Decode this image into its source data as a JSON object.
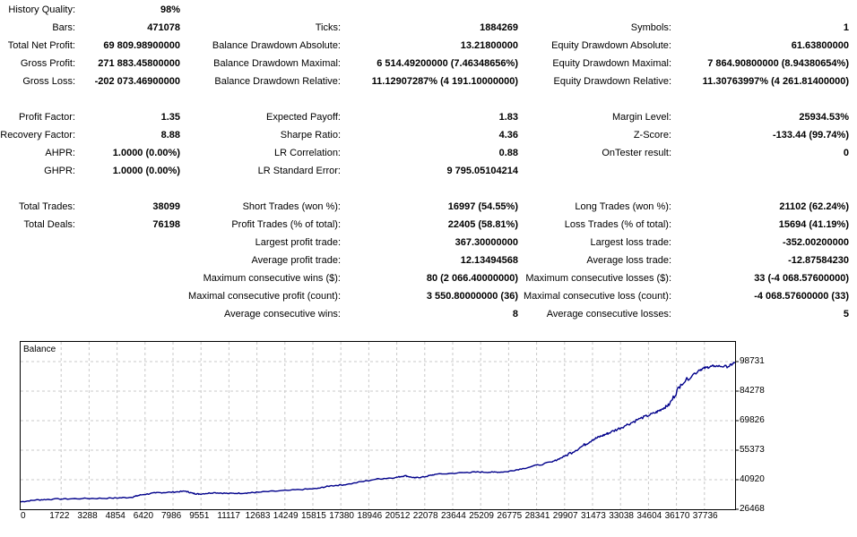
{
  "stats": [
    {
      "row": 0,
      "cells": [
        {
          "col": 1,
          "label": "History Quality:",
          "value": "98%"
        }
      ]
    },
    {
      "row": 1,
      "cells": [
        {
          "col": 1,
          "label": "Bars:",
          "value": "471078"
        },
        {
          "col": 2,
          "label": "Ticks:",
          "value": "1884269"
        },
        {
          "col": 3,
          "label": "Symbols:",
          "value": "1"
        }
      ]
    },
    {
      "row": 2,
      "cells": [
        {
          "col": 1,
          "label": "Total Net Profit:",
          "value": "69 809.98900000"
        },
        {
          "col": 2,
          "label": "Balance Drawdown Absolute:",
          "value": "13.21800000"
        },
        {
          "col": 3,
          "label": "Equity Drawdown Absolute:",
          "value": "61.63800000"
        }
      ]
    },
    {
      "row": 3,
      "cells": [
        {
          "col": 1,
          "label": "Gross Profit:",
          "value": "271 883.45800000"
        },
        {
          "col": 2,
          "label": "Balance Drawdown Maximal:",
          "value": "6 514.49200000 (7.46348656%)"
        },
        {
          "col": 3,
          "label": "Equity Drawdown Maximal:",
          "value": "7 864.90800000 (8.94380654%)"
        }
      ]
    },
    {
      "row": 4,
      "cells": [
        {
          "col": 1,
          "label": "Gross Loss:",
          "value": "-202 073.46900000"
        },
        {
          "col": 2,
          "label": "Balance Drawdown Relative:",
          "value": "11.12907287% (4 191.10000000)"
        },
        {
          "col": 3,
          "label": "Equity Drawdown Relative:",
          "value": "11.30763997% (4 261.81400000)"
        }
      ]
    },
    {
      "row": 6,
      "cells": [
        {
          "col": 1,
          "label": "Profit Factor:",
          "value": "1.35"
        },
        {
          "col": 2,
          "label": "Expected Payoff:",
          "value": "1.83"
        },
        {
          "col": 3,
          "label": "Margin Level:",
          "value": "25934.53%"
        }
      ]
    },
    {
      "row": 7,
      "cells": [
        {
          "col": 1,
          "label": "Recovery Factor:",
          "value": "8.88"
        },
        {
          "col": 2,
          "label": "Sharpe Ratio:",
          "value": "4.36"
        },
        {
          "col": 3,
          "label": "Z-Score:",
          "value": "-133.44 (99.74%)"
        }
      ]
    },
    {
      "row": 8,
      "cells": [
        {
          "col": 1,
          "label": "AHPR:",
          "value": "1.0000 (0.00%)"
        },
        {
          "col": 2,
          "label": "LR Correlation:",
          "value": "0.88"
        },
        {
          "col": 3,
          "label": "OnTester result:",
          "value": "0"
        }
      ]
    },
    {
      "row": 9,
      "cells": [
        {
          "col": 1,
          "label": "GHPR:",
          "value": "1.0000 (0.00%)"
        },
        {
          "col": 2,
          "label": "LR Standard Error:",
          "value": "9 795.05104214"
        }
      ]
    },
    {
      "row": 11,
      "cells": [
        {
          "col": 1,
          "label": "Total Trades:",
          "value": "38099"
        },
        {
          "col": 2,
          "label": "Short Trades (won %):",
          "value": "16997 (54.55%)"
        },
        {
          "col": 3,
          "label": "Long Trades (won %):",
          "value": "21102 (62.24%)"
        }
      ]
    },
    {
      "row": 12,
      "cells": [
        {
          "col": 1,
          "label": "Total Deals:",
          "value": "76198"
        },
        {
          "col": 2,
          "label": "Profit Trades (% of total):",
          "value": "22405 (58.81%)"
        },
        {
          "col": 3,
          "label": "Loss Trades (% of total):",
          "value": "15694 (41.19%)"
        }
      ]
    },
    {
      "row": 13,
      "cells": [
        {
          "col": 2,
          "label": "Largest profit trade:",
          "value": "367.30000000"
        },
        {
          "col": 3,
          "label": "Largest loss trade:",
          "value": "-352.00200000"
        }
      ]
    },
    {
      "row": 14,
      "cells": [
        {
          "col": 2,
          "label": "Average profit trade:",
          "value": "12.13494568"
        },
        {
          "col": 3,
          "label": "Average loss trade:",
          "value": "-12.87584230"
        }
      ]
    },
    {
      "row": 15,
      "cells": [
        {
          "col": 2,
          "label": "Maximum consecutive wins ($):",
          "value": "80 (2 066.40000000)"
        },
        {
          "col": 3,
          "label": "Maximum consecutive losses ($):",
          "value": "33 (-4 068.57600000)"
        }
      ]
    },
    {
      "row": 16,
      "cells": [
        {
          "col": 2,
          "label": "Maximal consecutive profit (count):",
          "value": "3 550.80000000 (36)"
        },
        {
          "col": 3,
          "label": "Maximal consecutive loss (count):",
          "value": "-4 068.57600000 (33)"
        }
      ]
    },
    {
      "row": 17,
      "cells": [
        {
          "col": 2,
          "label": "Average consecutive wins:",
          "value": "8"
        },
        {
          "col": 3,
          "label": "Average consecutive losses:",
          "value": "5"
        }
      ]
    }
  ],
  "chart_data": {
    "type": "line",
    "title": "Balance",
    "line_color": "#00008b",
    "grid": true,
    "ylim": [
      26468,
      98731
    ],
    "y_ticks": [
      "98731",
      "84278",
      "69826",
      "55373",
      "40920",
      "26468"
    ],
    "x_ticks": [
      "0",
      "1722",
      "3288",
      "4854",
      "6420",
      "7986",
      "9551",
      "11117",
      "12683",
      "14249",
      "15815",
      "17380",
      "18946",
      "20512",
      "22078",
      "23644",
      "25209",
      "26775",
      "28341",
      "29907",
      "31473",
      "33038",
      "34604",
      "36170",
      "37736"
    ],
    "xlim": [
      0,
      38099
    ],
    "series": [
      {
        "points": [
          [
            0,
            30100
          ],
          [
            800,
            31000
          ],
          [
            1722,
            31400
          ],
          [
            3288,
            31700
          ],
          [
            4854,
            31900
          ],
          [
            5900,
            32300
          ],
          [
            6420,
            33500
          ],
          [
            7200,
            34500
          ],
          [
            7986,
            34800
          ],
          [
            8800,
            35300
          ],
          [
            9200,
            34200
          ],
          [
            9551,
            33900
          ],
          [
            10300,
            34600
          ],
          [
            11117,
            34200
          ],
          [
            12000,
            34400
          ],
          [
            12683,
            34800
          ],
          [
            14249,
            35700
          ],
          [
            15815,
            36600
          ],
          [
            16500,
            37900
          ],
          [
            17380,
            38600
          ],
          [
            18946,
            41200
          ],
          [
            20000,
            42000
          ],
          [
            20512,
            42900
          ],
          [
            21000,
            41800
          ],
          [
            21500,
            42300
          ],
          [
            22078,
            43500
          ],
          [
            23644,
            44400
          ],
          [
            24300,
            44700
          ],
          [
            25209,
            44600
          ],
          [
            25900,
            44800
          ],
          [
            26775,
            46400
          ],
          [
            28341,
            49600
          ],
          [
            29000,
            52400
          ],
          [
            29907,
            57100
          ],
          [
            30500,
            60500
          ],
          [
            31000,
            62400
          ],
          [
            31473,
            64200
          ],
          [
            32200,
            67200
          ],
          [
            33038,
            70900
          ],
          [
            33800,
            73500
          ],
          [
            34200,
            75500
          ],
          [
            34604,
            77800
          ],
          [
            35200,
            87600
          ],
          [
            36170,
            94600
          ],
          [
            36600,
            95900
          ],
          [
            37000,
            96600
          ],
          [
            37736,
            96300
          ],
          [
            38099,
            98300
          ]
        ]
      }
    ]
  }
}
